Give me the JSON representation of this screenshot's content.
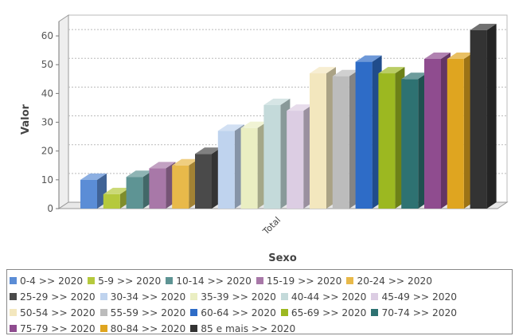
{
  "chart_data": {
    "type": "bar",
    "title": "",
    "xlabel": "Sexo",
    "ylabel": "Valor",
    "categories": [
      "Total"
    ],
    "ylim": [
      0,
      65
    ],
    "yticks": [
      0,
      10,
      20,
      30,
      40,
      50,
      60
    ],
    "grid": true,
    "legend_position": "bottom",
    "series": [
      {
        "name": "0-4 >> 2020",
        "values": [
          10
        ],
        "color": "#5B8DD6"
      },
      {
        "name": "5-9 >> 2020",
        "values": [
          5
        ],
        "color": "#B5C93D"
      },
      {
        "name": "10-14 >> 2020",
        "values": [
          11
        ],
        "color": "#5E9494"
      },
      {
        "name": "15-19 >> 2020",
        "values": [
          14
        ],
        "color": "#A878A8"
      },
      {
        "name": "20-24 >> 2020",
        "values": [
          15
        ],
        "color": "#E8B94A"
      },
      {
        "name": "25-29 >> 2020",
        "values": [
          19
        ],
        "color": "#4A4A4A"
      },
      {
        "name": "30-34 >> 2020",
        "values": [
          27
        ],
        "color": "#BFD3EE"
      },
      {
        "name": "35-39 >> 2020",
        "values": [
          28
        ],
        "color": "#EAEEC2"
      },
      {
        "name": "40-44 >> 2020",
        "values": [
          36
        ],
        "color": "#C4DADA"
      },
      {
        "name": "45-49 >> 2020",
        "values": [
          34
        ],
        "color": "#DCCDE3"
      },
      {
        "name": "50-54 >> 2020",
        "values": [
          47
        ],
        "color": "#F3E7BE"
      },
      {
        "name": "55-59 >> 2020",
        "values": [
          46
        ],
        "color": "#BCBCBC"
      },
      {
        "name": "60-64 >> 2020",
        "values": [
          51
        ],
        "color": "#2E6CC7"
      },
      {
        "name": "65-69 >> 2020",
        "values": [
          47
        ],
        "color": "#9CB821"
      },
      {
        "name": "70-74 >> 2020",
        "values": [
          45
        ],
        "color": "#2E7272"
      },
      {
        "name": "75-79 >> 2020",
        "values": [
          52
        ],
        "color": "#8F4C8F"
      },
      {
        "name": "80-84 >> 2020",
        "values": [
          52
        ],
        "color": "#DFA520"
      },
      {
        "name": "85 e mais >> 2020",
        "values": [
          62
        ],
        "color": "#333333"
      }
    ]
  }
}
